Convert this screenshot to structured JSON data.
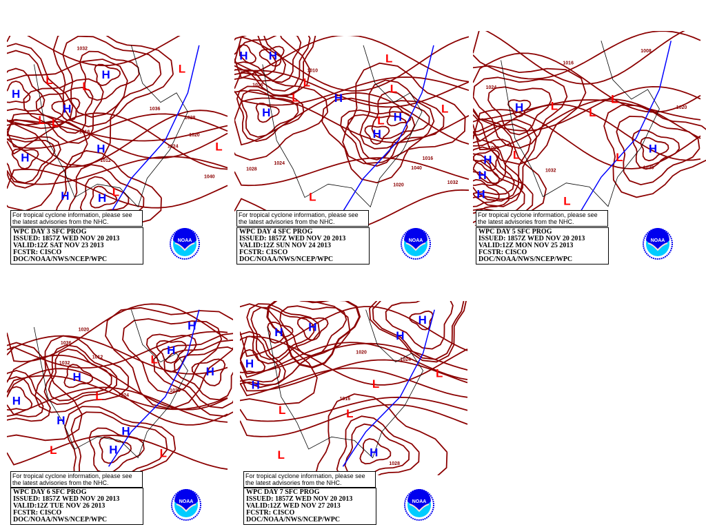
{
  "colors": {
    "isobar": "#8b0000",
    "high": "#0000ff",
    "low": "#ff0000",
    "cold_front": "#0000ff",
    "warm_front": "#ff0000",
    "coast": "#000000",
    "logo_blue": "#0000ee",
    "logo_cyan": "#00ccff"
  },
  "note": {
    "line1": "For tropical cyclone information, please see",
    "line2": "the latest advisories from the NHC."
  },
  "logo": {
    "label": "NOAA",
    "icon": "noaa-logo"
  },
  "panels": [
    {
      "title": "WPC DAY 3 SFC PROG",
      "issued": "ISSUED: 1857Z WED NOV 20 2013",
      "valid": "VALID:12Z SAT NOV 23 2013",
      "fcstr": "FCSTR: CISCO",
      "org": "DOC/NOAA/NWS/NCEP/WPC",
      "centers": [
        "H",
        "H",
        "H",
        "H",
        "H",
        "H",
        "H",
        "L",
        "L",
        "L",
        "L",
        "L",
        "L",
        "L"
      ],
      "isobar_labels": [
        "1016",
        "1020",
        "1032",
        "1036",
        "1040",
        "1028",
        "1024",
        "1012"
      ]
    },
    {
      "title": "WPC DAY 4 SFC PROG",
      "issued": "ISSUED: 1857Z WED NOV 20 2013",
      "valid": "VALID:12Z SUN NOV 24 2013",
      "fcstr": "FCSTR: CISCO",
      "org": "DOC/NOAA/NWS/NCEP/WPC",
      "centers": [
        "H",
        "H",
        "H",
        "H",
        "H",
        "H",
        "L",
        "L",
        "L",
        "L",
        "L",
        "L",
        "L"
      ],
      "isobar_labels": [
        "1010",
        "1020",
        "1028",
        "1036",
        "1040",
        "1016",
        "1024",
        "1032"
      ]
    },
    {
      "title": "WPC DAY 5 SFC PROG",
      "issued": "ISSUED: 1857Z WED NOV 20 2013",
      "valid": "VALID:12Z MON NOV 25 2013",
      "fcstr": "FCSTR: CISCO",
      "org": "DOC/NOAA/NWS/NCEP/WPC",
      "centers": [
        "H",
        "H",
        "H",
        "H",
        "H",
        "L",
        "L",
        "L",
        "L",
        "L",
        "L"
      ],
      "isobar_labels": [
        "1000",
        "1032",
        "1024",
        "1020",
        "1028",
        "1016",
        "1008"
      ]
    },
    {
      "title": "WPC DAY 6 SFC PROG",
      "issued": "ISSUED: 1857Z WED NOV 20 2013",
      "valid": "VALID:12Z TUE NOV 26 2013",
      "fcstr": "FCSTR: CISCO",
      "org": "DOC/NOAA/NWS/NCEP/WPC",
      "centers": [
        "H",
        "H",
        "H",
        "H",
        "H",
        "H",
        "H",
        "H",
        "L",
        "L",
        "L",
        "L"
      ],
      "isobar_labels": [
        "1036",
        "1012",
        "1032",
        "1024",
        "1028",
        "1020"
      ]
    },
    {
      "title": "WPC DAY 7 SFC PROG",
      "issued": "ISSUED: 1857Z WED NOV 20 2013",
      "valid": "VALID:12Z WED NOV 27 2013",
      "fcstr": "FCSTR: CISCO",
      "org": "DOC/NOAA/NWS/NCEP/WPC",
      "centers": [
        "H",
        "H",
        "H",
        "H",
        "H",
        "H",
        "H",
        "L",
        "L",
        "L",
        "L",
        "L"
      ],
      "isobar_labels": [
        "1024",
        "1020",
        "1028",
        "1016"
      ]
    }
  ]
}
